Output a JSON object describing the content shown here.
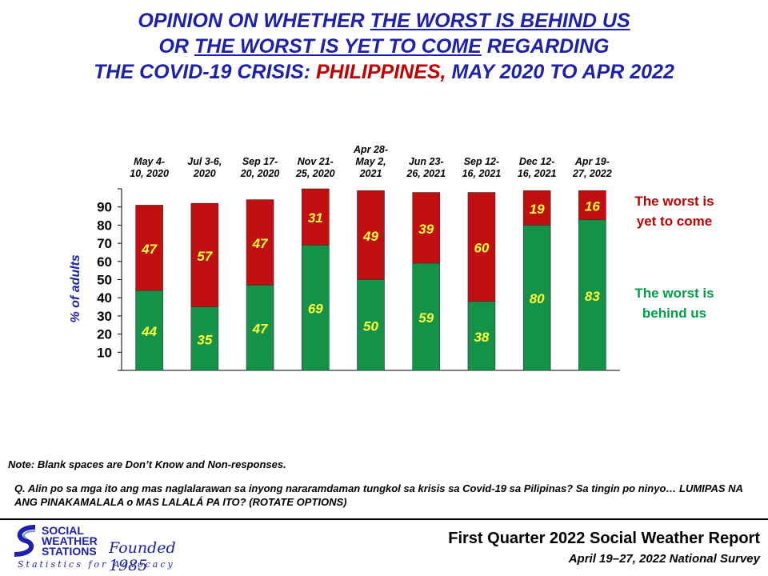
{
  "title": {
    "line1_pre": "OPINION ON WHETHER ",
    "line1_ul": "THE WORST IS BEHIND US",
    "line2_pre": "OR ",
    "line2_ul": "THE WORST IS YET TO COME",
    "line2_post": " REGARDING",
    "line3_pre": "THE COVID-19 CRISIS: ",
    "line3_red": "PHILIPPINES,",
    "line3_post": " MAY 2020 TO APR 2022"
  },
  "chart_data": {
    "type": "bar",
    "stacked": true,
    "categories": [
      [
        "May 4-",
        "10, 2020"
      ],
      [
        "Jul 3-6,",
        "2020"
      ],
      [
        "Sep 17-",
        "20, 2020"
      ],
      [
        "Nov 21-",
        "25, 2020"
      ],
      [
        "Apr 28-",
        "May 2,",
        "2021"
      ],
      [
        "Jun 23-",
        "26, 2021"
      ],
      [
        "Sep 12-",
        "16, 2021"
      ],
      [
        "Dec 12-",
        "16, 2021"
      ],
      [
        "Apr 19-",
        "27, 2022"
      ]
    ],
    "series": [
      {
        "name": "The worst is behind us",
        "values": [
          44,
          35,
          47,
          69,
          50,
          59,
          38,
          80,
          83
        ]
      },
      {
        "name": "The worst is yet to come",
        "values": [
          47,
          57,
          47,
          31,
          49,
          39,
          60,
          19,
          16
        ]
      }
    ],
    "ylabel": "% of adults",
    "yticks": [
      10,
      20,
      30,
      40,
      50,
      60,
      70,
      80,
      90
    ],
    "ylim": [
      0,
      100
    ],
    "legend": [
      {
        "lines": [
          "The worst is",
          "yet to come"
        ],
        "color": "#c00000"
      },
      {
        "lines": [
          "The worst is",
          "behind us"
        ],
        "color": "#00a04a"
      }
    ],
    "colors": {
      "behind": "#149247",
      "yet": "#bf0f0f",
      "label": "#ffff33"
    }
  },
  "note": "Note: Blank spaces are Don’t Know and Non-responses.",
  "question": "Q. Alin po sa mga ito ang mas naglalarawan sa inyong nararamdaman tungkol sa krisis sa Covid-19 sa Pilipinas? Sa tingin po ninyo… LUMIPAS NA ANG PINAKAMALALA o MAS LALALÁ PA ITO? (ROTATE OPTIONS)",
  "logo": {
    "line1": "SOCIAL",
    "line2": "WEATHER",
    "line3": "STATIONS",
    "founded": "Founded 1985",
    "tagline": "Statistics for Advocacy"
  },
  "report": {
    "title": "First Quarter 2022 Social Weather Report",
    "subtitle": "April 19–27, 2022 National Survey"
  }
}
